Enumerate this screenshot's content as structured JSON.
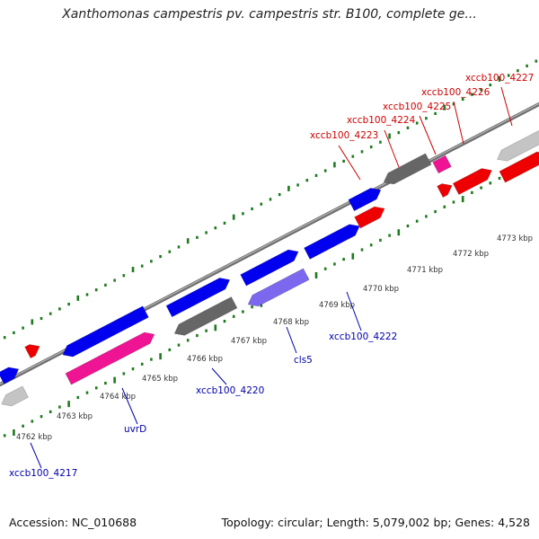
{
  "title": "Xanthomonas campestris pv. campestris str. B100, complete ge...",
  "footer": {
    "accession": "Accession: NC_010688",
    "summary": "Topology: circular; Length: 5,079,002 bp; Genes: 4,528"
  },
  "colors": {
    "plus_strand_label": "#cc0000",
    "minus_strand_label": "#0000aa",
    "backbone": "#8c8c8c",
    "tick": "#1e7a1e",
    "gene_blue": "#0000ee",
    "gene_red": "#ee0000",
    "gene_gray": "#666666",
    "gene_lightgray": "#c4c4c4",
    "gene_pink": "#ee1493",
    "gene_lavender": "#7b68ee"
  },
  "kbp_ticks": [
    {
      "label": "4762 kbp"
    },
    {
      "label": "4763 kbp"
    },
    {
      "label": "4764 kbp"
    },
    {
      "label": "4765 kbp"
    },
    {
      "label": "4766 kbp"
    },
    {
      "label": "4767 kbp"
    },
    {
      "label": "4768 kbp"
    },
    {
      "label": "4769 kbp"
    },
    {
      "label": "4770 kbp"
    },
    {
      "label": "4771 kbp"
    },
    {
      "label": "4772 kbp"
    },
    {
      "label": "4773 kbp"
    }
  ],
  "gene_labels": [
    {
      "text": "xccb100_4217",
      "strand": "minus"
    },
    {
      "text": "uvrD",
      "strand": "minus"
    },
    {
      "text": "xccb100_4220",
      "strand": "minus"
    },
    {
      "text": "cls5",
      "strand": "minus"
    },
    {
      "text": "xccb100_4222",
      "strand": "minus"
    },
    {
      "text": "xccb100_4223",
      "strand": "plus"
    },
    {
      "text": "xccb100_4224",
      "strand": "plus"
    },
    {
      "text": "xccb100_4225",
      "strand": "plus"
    },
    {
      "text": "xccb100_4226",
      "strand": "plus"
    },
    {
      "text": "xccb100_4227",
      "strand": "plus"
    }
  ],
  "features": [
    {
      "color": "gene_blue"
    },
    {
      "color": "gene_lightgray"
    },
    {
      "color": "gene_red"
    },
    {
      "color": "gene_blue"
    },
    {
      "color": "gene_pink"
    },
    {
      "color": "gene_blue"
    },
    {
      "color": "gene_gray"
    },
    {
      "color": "gene_blue"
    },
    {
      "color": "gene_lavender"
    },
    {
      "color": "gene_blue"
    },
    {
      "color": "gene_blue"
    },
    {
      "color": "gene_gray"
    },
    {
      "color": "gene_red"
    },
    {
      "color": "gene_pink"
    },
    {
      "color": "gene_red"
    },
    {
      "color": "gene_red"
    },
    {
      "color": "gene_lightgray"
    },
    {
      "color": "gene_red"
    }
  ]
}
